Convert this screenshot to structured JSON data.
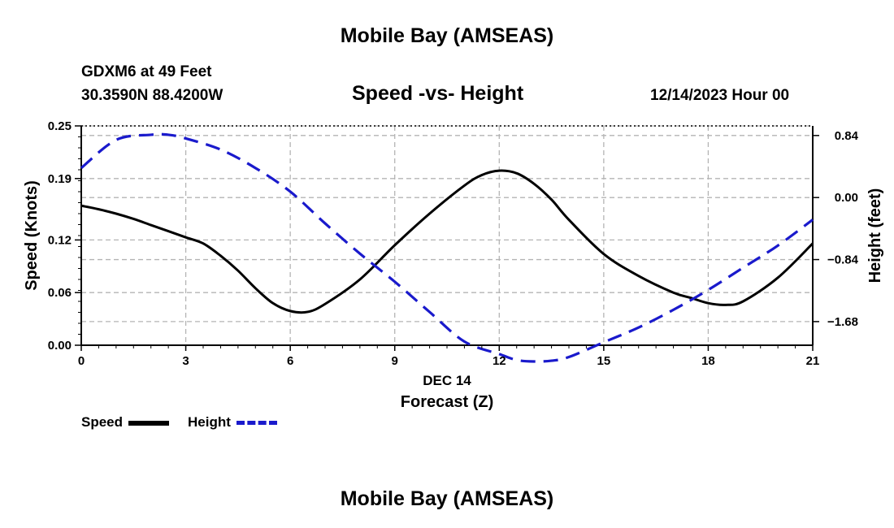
{
  "header": {
    "title_top": "Mobile Bay (AMSEAS)",
    "station": "GDXM6 at 49 Feet",
    "coords": "30.3590N  88.4200W",
    "chart_title": "Speed -vs- Height",
    "datetime": "12/14/2023 Hour 00",
    "title_bottom": "Mobile Bay (AMSEAS)"
  },
  "legend": {
    "speed_label": "Speed",
    "height_label": "Height"
  },
  "colors": {
    "speed": "#000000",
    "height": "#1a1acc",
    "grid": "#b4b4b4"
  },
  "chart_data": {
    "type": "line",
    "title": "Speed -vs- Height",
    "xlabel": "Forecast (Z)",
    "xlabel_date": "DEC 14",
    "ylabel_left": "Speed (Knots)",
    "ylabel_right": "Height (feet)",
    "xlim": [
      0,
      21
    ],
    "ylim_left": [
      0,
      0.25
    ],
    "ylim_right": [
      -2.0,
      0.97
    ],
    "x_ticks": [
      0,
      3,
      6,
      9,
      12,
      15,
      18,
      21
    ],
    "x_tick_labels": [
      "0",
      "3",
      "6",
      "9",
      "12",
      "15",
      "18",
      "21"
    ],
    "y_left_ticks": [
      0.0,
      0.06,
      0.12,
      0.19,
      0.25
    ],
    "y_left_tick_labels": [
      "0.00",
      "0.06",
      "0.12",
      "0.19",
      "0.25"
    ],
    "y_right_ticks": [
      0.84,
      0.0,
      -0.84,
      -1.68
    ],
    "y_right_tick_labels": [
      "0.84",
      "0.00",
      "-0.84",
      "-1.68"
    ],
    "series": [
      {
        "name": "Speed",
        "axis": "left",
        "style": "solid",
        "x": [
          0,
          0.5,
          1,
          1.5,
          2,
          2.5,
          3,
          3.5,
          4,
          4.5,
          5,
          5.5,
          6,
          6.5,
          7,
          8,
          9,
          10,
          11,
          11.5,
          12,
          12.5,
          13,
          13.5,
          14,
          15,
          16,
          17,
          17.5,
          18,
          18.5,
          19,
          20,
          21
        ],
        "values": [
          0.159,
          0.155,
          0.15,
          0.144,
          0.137,
          0.13,
          0.123,
          0.116,
          0.102,
          0.085,
          0.065,
          0.048,
          0.039,
          0.038,
          0.047,
          0.075,
          0.114,
          0.15,
          0.182,
          0.194,
          0.199,
          0.196,
          0.184,
          0.166,
          0.143,
          0.104,
          0.079,
          0.06,
          0.054,
          0.048,
          0.046,
          0.05,
          0.077,
          0.116
        ]
      },
      {
        "name": "Height",
        "axis": "right",
        "style": "dashed",
        "x": [
          0,
          1,
          2,
          2.5,
          3,
          4,
          5,
          6,
          7,
          8,
          9,
          10,
          11,
          12,
          12.5,
          13,
          13.5,
          14,
          15,
          16,
          17,
          18,
          19,
          20,
          21
        ],
        "values": [
          0.4,
          0.78,
          0.85,
          0.85,
          0.8,
          0.65,
          0.4,
          0.08,
          -0.35,
          -0.76,
          -1.14,
          -1.55,
          -1.95,
          -2.12,
          -2.2,
          -2.22,
          -2.21,
          -2.16,
          -1.96,
          -1.76,
          -1.52,
          -1.25,
          -0.95,
          -0.65,
          -0.3
        ]
      }
    ]
  }
}
